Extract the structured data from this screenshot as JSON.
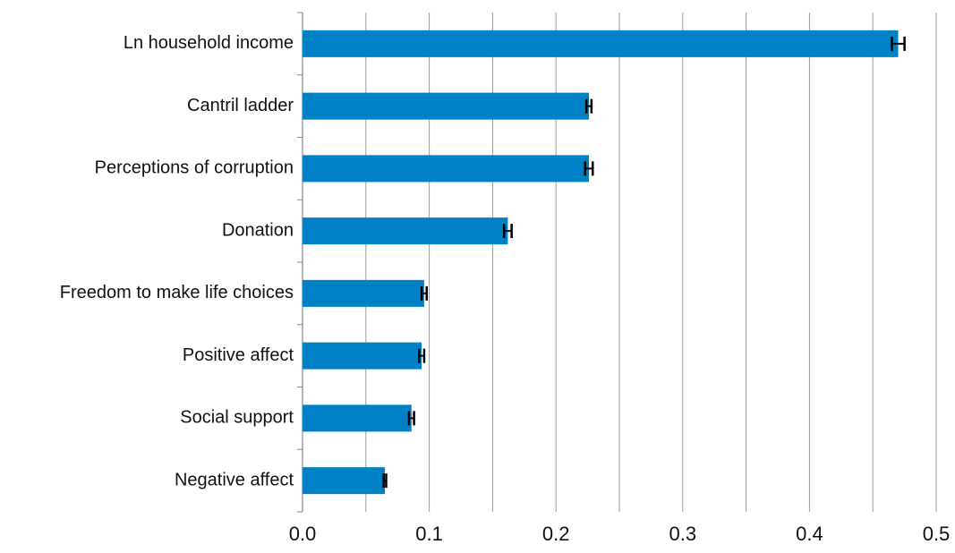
{
  "chart_data": {
    "type": "bar",
    "orientation": "horizontal",
    "categories": [
      "Ln household income",
      "Cantril ladder",
      "Perceptions of corruption",
      "Donation",
      "Freedom to make life choices",
      "Positive affect",
      "Social support",
      "Negative affect"
    ],
    "values": [
      0.47,
      0.226,
      0.226,
      0.162,
      0.096,
      0.094,
      0.086,
      0.065
    ],
    "errors": [
      0.005,
      0.002,
      0.003,
      0.003,
      0.002,
      0.002,
      0.002,
      0.001
    ],
    "xlim": [
      0,
      0.5
    ],
    "xticks": [
      "0.0",
      "0.1",
      "0.2",
      "0.3",
      "0.4",
      "0.5"
    ],
    "title": "",
    "xlabel": "",
    "ylabel": "",
    "grid": "vertical",
    "legend": "none",
    "colors": {
      "bar": "#0081C6",
      "error_bar": "#000000",
      "grid": "#9a9a9a",
      "axis": "#888888"
    }
  }
}
